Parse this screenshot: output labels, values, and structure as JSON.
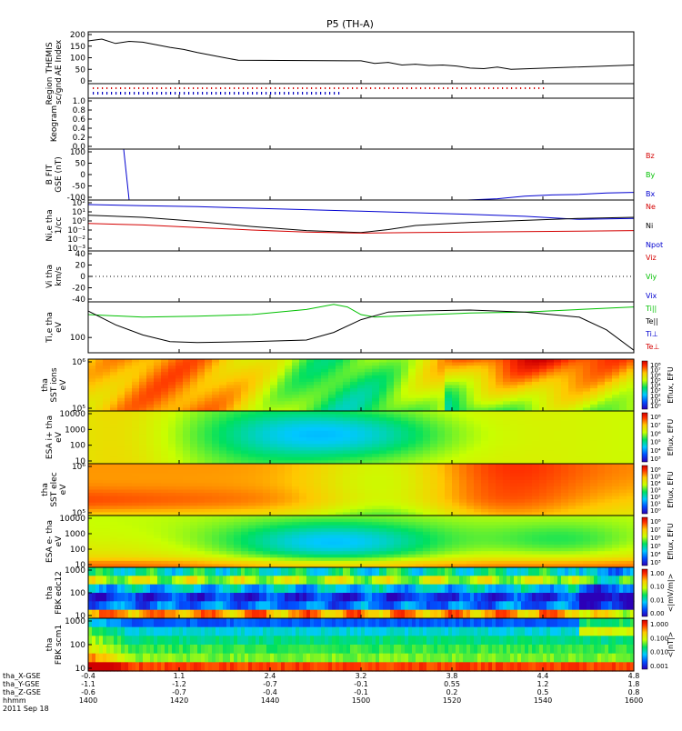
{
  "title": "P5 (TH-A)",
  "date_label": "2011 Sep 18",
  "footer_rows": [
    {
      "label": "tha_X-GSE",
      "values": [
        "-0.4",
        "1.1",
        "2.4",
        "3.2",
        "3.8",
        "4.4",
        "4.8"
      ]
    },
    {
      "label": "tha_Y-GSE",
      "values": [
        "-1.1",
        "-1.2",
        "-0.7",
        "-0.1",
        "0.55",
        "1.2",
        "1.8"
      ]
    },
    {
      "label": "tha_Z-GSE",
      "values": [
        "-0.6",
        "-0.7",
        "-0.4",
        "-0.1",
        "0.2",
        "0.5",
        "0.8"
      ]
    },
    {
      "label": "hhmm",
      "values": [
        "1400",
        "1420",
        "1440",
        "1500",
        "1520",
        "1540",
        "1600"
      ]
    }
  ],
  "panels": [
    {
      "key": "ae",
      "ylabel": [
        "THEMIS",
        "AE Index"
      ],
      "ticks": [
        "200",
        "150",
        "100",
        "50",
        "0"
      ],
      "right": []
    },
    {
      "key": "region",
      "ylabel": [
        "Region",
        "sc/gnd"
      ],
      "ticks": [],
      "right": []
    },
    {
      "key": "keogram",
      "ylabel": [
        "Keogram"
      ],
      "ticks": [
        "1.0",
        "0.8",
        "0.6",
        "0.4",
        "0.2",
        "0.0"
      ],
      "right": []
    },
    {
      "key": "bfgm",
      "ylabel": [
        "B FIT",
        "GSE (nT)"
      ],
      "ticks": [
        "100",
        "50",
        "0",
        "-50",
        "-100"
      ],
      "right": [
        {
          "t": "Bz",
          "c": "#d40000"
        },
        {
          "t": "By",
          "c": "#00c000"
        },
        {
          "t": "Bx",
          "c": "#0000d0"
        }
      ]
    },
    {
      "key": "dens",
      "ylabel": [
        "Ni,e tha",
        "1/cc"
      ],
      "ticks": [
        "10²",
        "10¹",
        "10⁰",
        "10⁻¹",
        "10⁻²",
        "10⁻³"
      ],
      "right": [
        {
          "t": "Ne",
          "c": "#d40000"
        },
        {
          "t": "Ni",
          "c": "#000000"
        },
        {
          "t": "Npot",
          "c": "#0000d0"
        }
      ]
    },
    {
      "key": "vel",
      "ylabel": [
        "Vi tha",
        "km/s"
      ],
      "ticks": [
        "40",
        "20",
        "0",
        "-20",
        "-40"
      ],
      "right": [
        {
          "t": "Viz",
          "c": "#d40000"
        },
        {
          "t": "Viy",
          "c": "#00c000"
        },
        {
          "t": "Vix",
          "c": "#0000d0"
        }
      ]
    },
    {
      "key": "temp",
      "ylabel": [
        "Ti,e tha",
        "eV"
      ],
      "ticks": [
        "100"
      ],
      "right": [
        {
          "t": "Ti||",
          "c": "#00c000"
        },
        {
          "t": "Te||",
          "c": "#000000"
        },
        {
          "t": "Ti⊥",
          "c": "#0000d0"
        },
        {
          "t": "Te⊥",
          "c": "#d40000"
        }
      ]
    },
    {
      "key": "sst_ion",
      "ylabel": [
        "tha",
        "SST ions",
        "eV"
      ],
      "ticks": [
        "10⁶",
        "10⁵"
      ],
      "right": [],
      "cbar": {
        "ticks": [
          "10⁸",
          "10⁷",
          "10⁶",
          "10⁵",
          "10⁴",
          "10³",
          "10²",
          "10¹",
          "10⁰"
        ],
        "label": "Eflux, EFU"
      }
    },
    {
      "key": "esa_ion",
      "ylabel": [
        "ESA i+ tha",
        "eV"
      ],
      "ticks": [
        "10000",
        "1000",
        "100",
        "10"
      ],
      "right": [],
      "cbar": {
        "ticks": [
          "10⁸",
          "10⁷",
          "10⁶",
          "10⁵",
          "10⁴",
          "10³"
        ],
        "label": "Eflux, EFU"
      }
    },
    {
      "key": "sst_elec",
      "ylabel": [
        "tha",
        "SST elec",
        "eV"
      ],
      "ticks": [
        "10⁶",
        "10⁵"
      ],
      "right": [],
      "cbar": {
        "ticks": [
          "10⁶",
          "10⁵",
          "10⁴",
          "10³",
          "10²",
          "10¹",
          "10⁰"
        ],
        "label": "Eflux, EFU"
      }
    },
    {
      "key": "esa_elec",
      "ylabel": [
        "ESA e- tha",
        "eV"
      ],
      "ticks": [
        "10000",
        "1000",
        "100",
        "10"
      ],
      "right": [],
      "cbar": {
        "ticks": [
          "10⁸",
          "10⁷",
          "10⁶",
          "10⁵",
          "10⁴",
          "10³"
        ],
        "label": "Eflux, EFU"
      }
    },
    {
      "key": "fbk_e",
      "ylabel": [
        "tha",
        "FBK edc12"
      ],
      "ticks": [
        "1000",
        "100",
        "10"
      ],
      "right": [],
      "cbar": {
        "ticks": [
          "1.00",
          "0.10",
          "0.01",
          "0.00"
        ],
        "label": "<|mV/m|>"
      }
    },
    {
      "key": "fbk_b",
      "ylabel": [
        "tha",
        "FBK scm1"
      ],
      "ticks": [
        "1000",
        "100",
        "10"
      ],
      "right": [],
      "cbar": {
        "ticks": [
          "1.000",
          "0.100",
          "0.010",
          "0.001"
        ],
        "label": "<|nT|>"
      }
    }
  ],
  "chart_data": {
    "type": "line",
    "x_axis": {
      "label": "hhmm",
      "range": [
        1400,
        1600
      ],
      "ticks": [
        1400,
        1420,
        1440,
        1500,
        1520,
        1540,
        1600
      ]
    },
    "ae_index": {
      "ylim": [
        0,
        200
      ],
      "x": [
        1400,
        1405,
        1410,
        1415,
        1420,
        1425,
        1430,
        1435,
        1440,
        1445,
        1450,
        1455,
        1500,
        1505,
        1510,
        1515,
        1520,
        1525,
        1530,
        1535,
        1540,
        1545,
        1550,
        1555,
        1600
      ],
      "y": [
        165,
        172,
        155,
        163,
        160,
        150,
        140,
        132,
        120,
        110,
        100,
        90,
        88,
        78,
        82,
        72,
        75,
        70,
        72,
        68,
        60,
        58,
        64,
        55,
        72
      ]
    },
    "bfgm": {
      "ylim": [
        -100,
        100
      ],
      "bx": {
        "x": [
          1539,
          1550,
          1560,
          1570,
          1580,
          1590,
          1600
        ],
        "y": [
          -100,
          -95,
          -85,
          -80,
          -78,
          -72,
          -70
        ]
      },
      "spike": {
        "x": [
          1413,
          1415
        ],
        "y": [
          100,
          -100
        ]
      }
    },
    "density": {
      "ylim_log": [
        -3,
        2
      ],
      "npot": {
        "x": [
          1400,
          1420,
          1440,
          1460,
          1480,
          1500,
          1520,
          1540,
          1560,
          1580,
          1600
        ],
        "y": [
          1.55,
          1.45,
          1.35,
          1.2,
          1.05,
          0.9,
          0.75,
          0.6,
          0.4,
          0.1,
          0.2
        ]
      },
      "ni": {
        "x": [
          1400,
          1420,
          1440,
          1460,
          1480,
          1500,
          1510,
          1520,
          1540,
          1560,
          1580,
          1600
        ],
        "y": [
          0.5,
          0.3,
          -0.1,
          -0.6,
          -1.0,
          -1.2,
          -0.9,
          -0.5,
          -0.2,
          0.0,
          0.2,
          0.3
        ]
      },
      "ne": {
        "x": [
          1400,
          1420,
          1440,
          1460,
          1480,
          1500,
          1520,
          1540,
          1560,
          1580,
          1600
        ],
        "y": [
          -0.3,
          -0.45,
          -0.7,
          -0.95,
          -1.15,
          -1.25,
          -1.2,
          -1.15,
          -1.1,
          -1.05,
          -1.0
        ]
      }
    },
    "temperature": {
      "ti_par": {
        "x": [
          1400,
          1420,
          1440,
          1460,
          1480,
          1490,
          1495,
          1500,
          1505,
          1520,
          1540,
          1560,
          1580,
          1600
        ],
        "y": [
          0.75,
          0.7,
          0.72,
          0.75,
          0.85,
          0.95,
          0.9,
          0.75,
          0.7,
          0.74,
          0.78,
          0.8,
          0.85,
          0.9
        ]
      },
      "te_par": {
        "x": [
          1400,
          1410,
          1420,
          1430,
          1440,
          1460,
          1480,
          1490,
          1500,
          1510,
          1520,
          1540,
          1560,
          1570,
          1580,
          1590,
          1600
        ],
        "y": [
          0.82,
          0.55,
          0.35,
          0.22,
          0.2,
          0.22,
          0.25,
          0.4,
          0.65,
          0.8,
          0.82,
          0.84,
          0.8,
          0.75,
          0.7,
          0.45,
          0.05
        ]
      }
    }
  }
}
